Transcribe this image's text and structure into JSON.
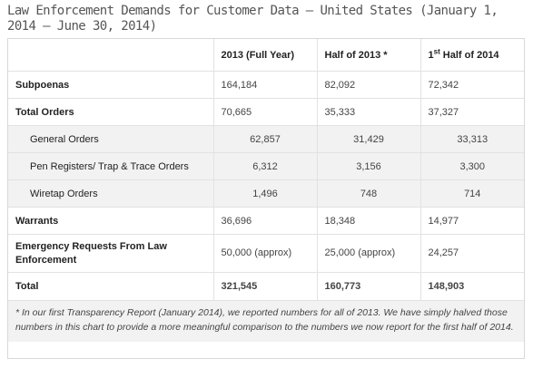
{
  "title": "Law Enforcement Demands for Customer Data — United States (January 1, 2014 – June 30, 2014)",
  "columns": {
    "col1": "2013 (Full Year)",
    "col2": "Half of 2013 *",
    "col3_prefix": "1",
    "col3_sup": "st",
    "col3_suffix": " Half of 2014"
  },
  "rows": [
    {
      "label": "Subpoenas",
      "v1": "164,184",
      "v2": "82,092",
      "v3": "72,342"
    },
    {
      "label": "Total Orders",
      "v1": "70,665",
      "v2": "35,333",
      "v3": "37,327"
    },
    {
      "label": "General Orders",
      "v1": "62,857",
      "v2": "31,429",
      "v3": "33,313"
    },
    {
      "label": "Pen Registers/ Trap & Trace Orders",
      "v1": "6,312",
      "v2": "3,156",
      "v3": "3,300"
    },
    {
      "label": "Wiretap Orders",
      "v1": "1,496",
      "v2": "748",
      "v3": "714"
    },
    {
      "label": "Warrants",
      "v1": "36,696",
      "v2": "18,348",
      "v3": "14,977"
    },
    {
      "label": "Emergency Requests From Law Enforcement",
      "v1": "50,000 (approx)",
      "v2": "25,000 (approx)",
      "v3": "24,257"
    },
    {
      "label": "Total",
      "v1": "321,545",
      "v2": "160,773",
      "v3": "148,903"
    }
  ],
  "footnote": "* In our first Transparency Report (January 2014), we reported numbers for all of 2013. We have simply halved those numbers in this chart to provide a more meaningful comparison to the numbers we now report for the first half of 2014."
}
